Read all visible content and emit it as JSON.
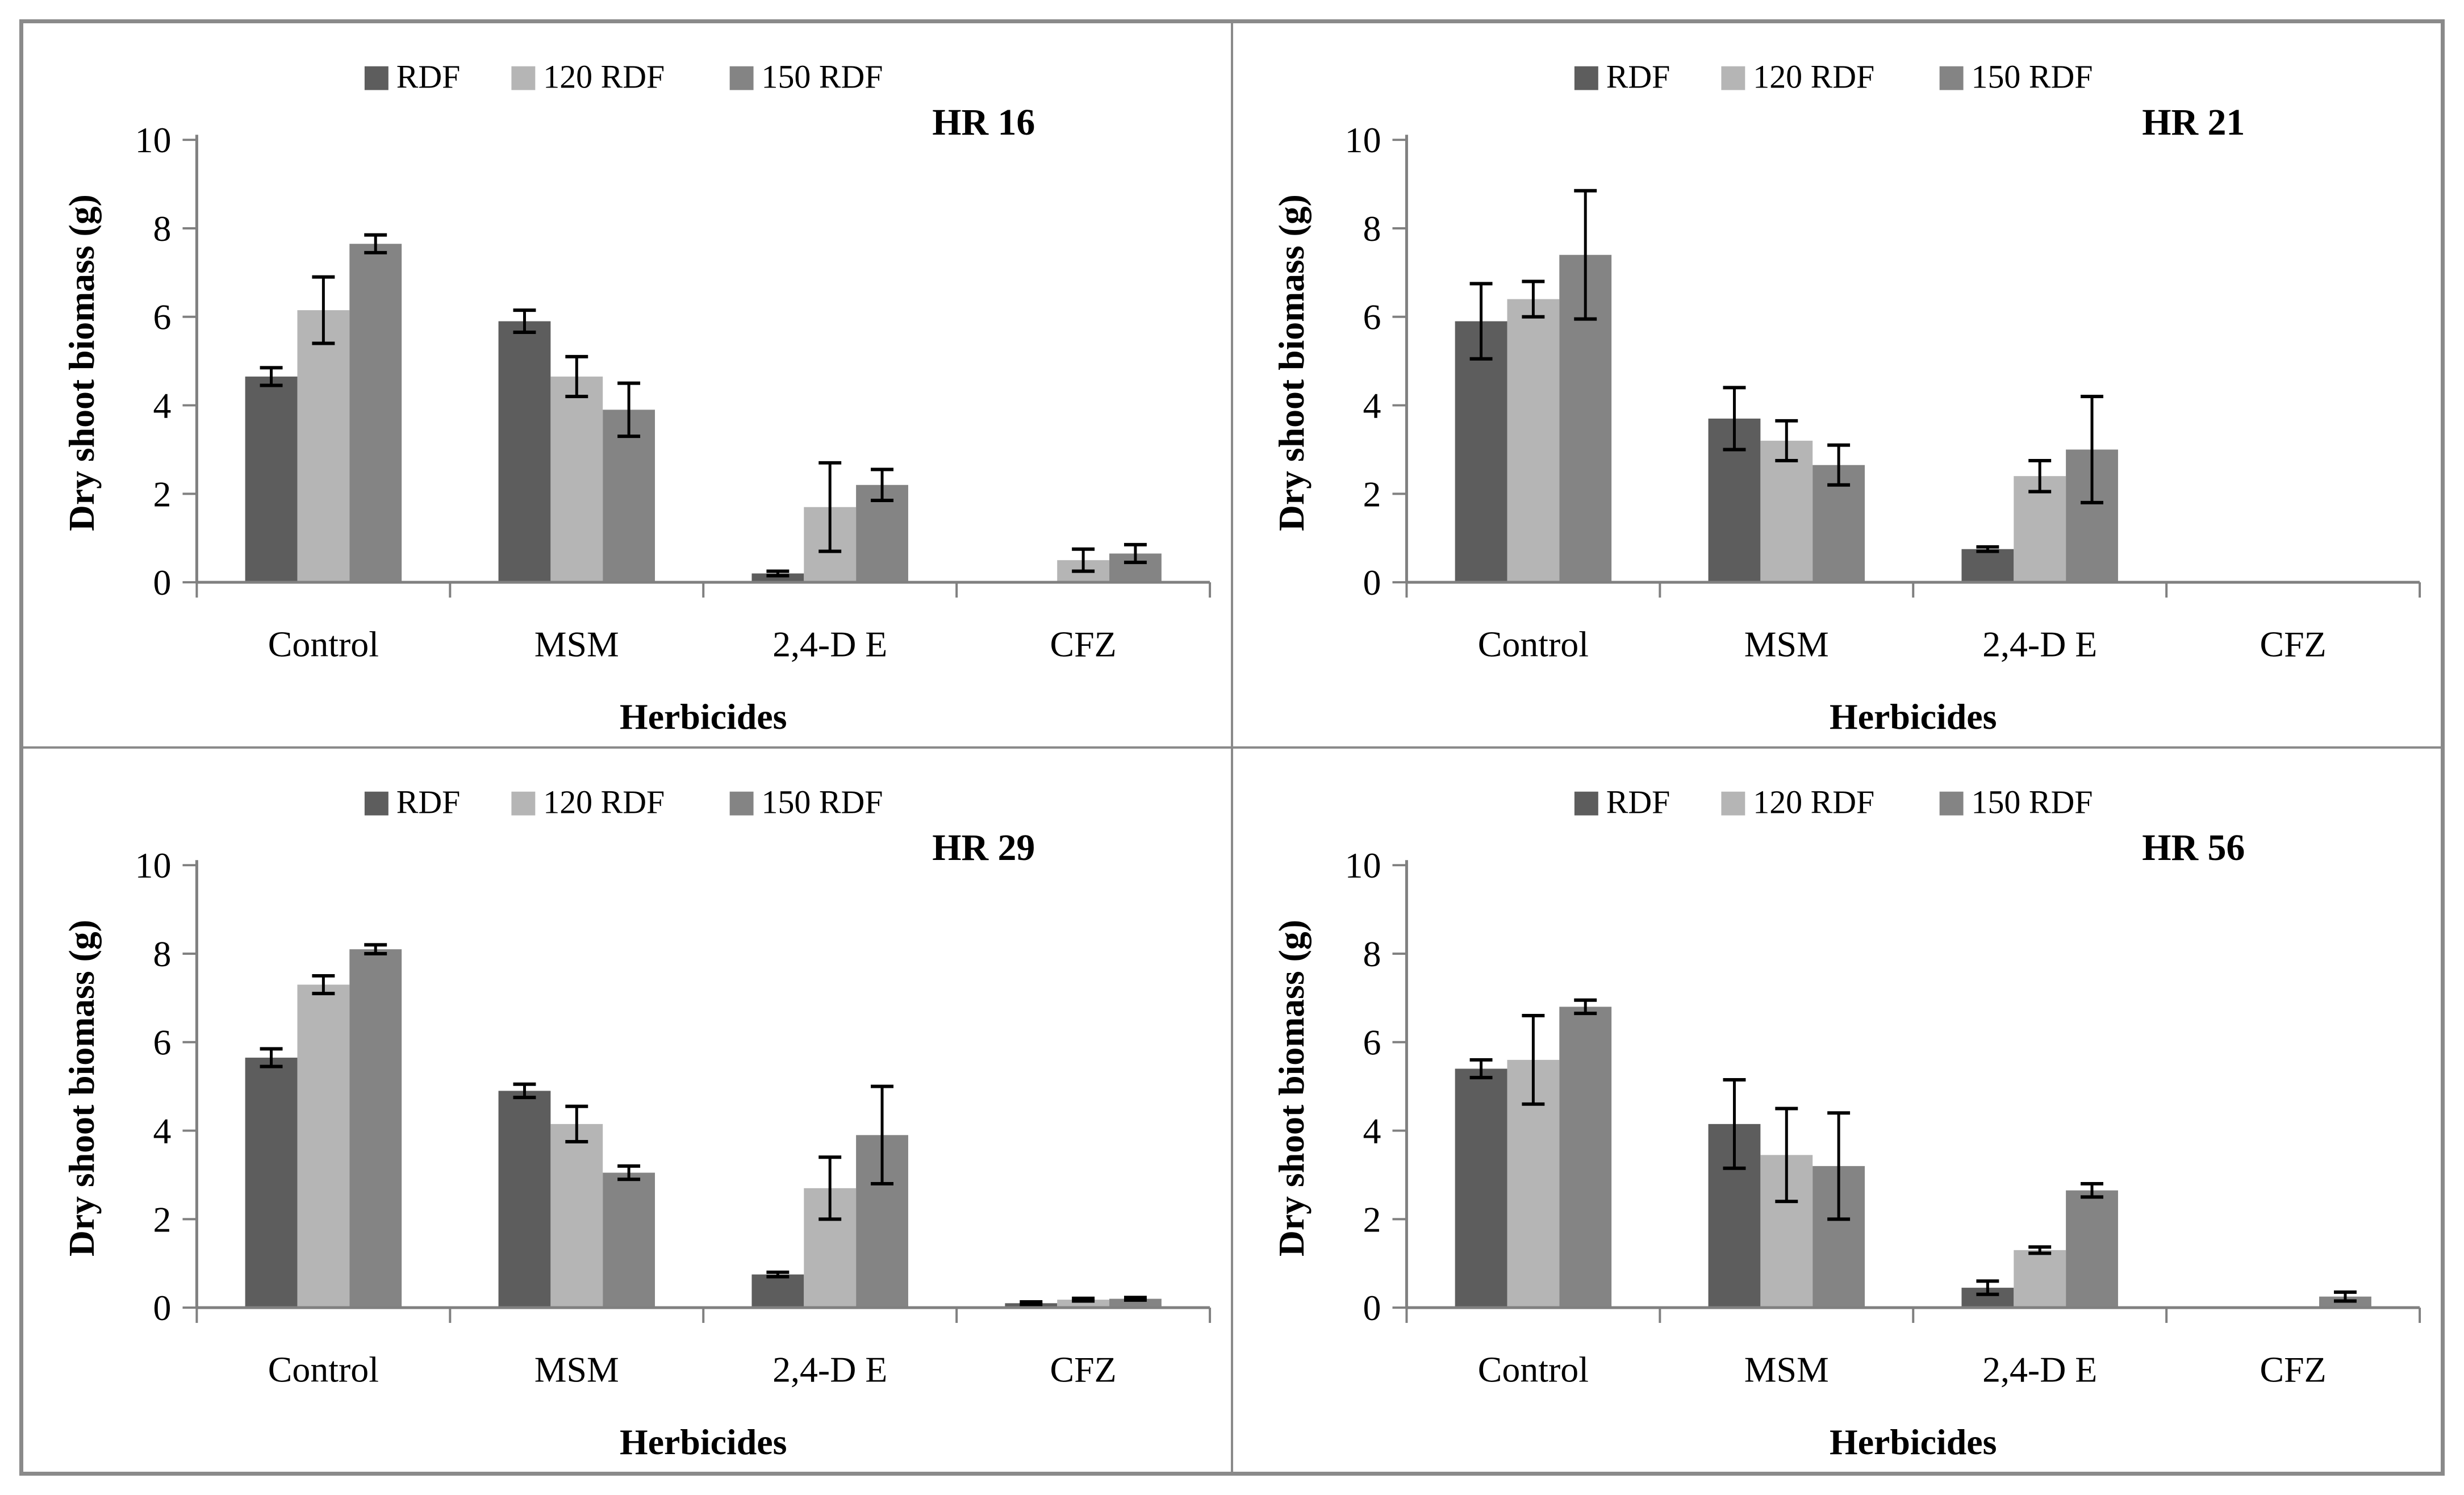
{
  "figure": {
    "panel_titles": [
      "HR 16",
      "HR 21",
      "HR 29",
      "HR 56"
    ]
  },
  "legend": {
    "items": [
      {
        "label": "RDF",
        "color": "#5d5d5d"
      },
      {
        "label": "120 RDF",
        "color": "#b5b5b5"
      },
      {
        "label": "150 RDF",
        "color": "#848484"
      }
    ]
  },
  "axes": {
    "ylabel": "Dry shoot biomass (g)",
    "xlabel": "Herbicides",
    "yticks": [
      0,
      2,
      4,
      6,
      8,
      10
    ],
    "ylim": [
      0,
      10
    ],
    "grid": false,
    "legend_position": "top-center"
  },
  "colors": {
    "axis_line": "#808080",
    "tick_line": "#808080",
    "error_bar": "#000000",
    "text": "#000000",
    "panel_border": "#8a8a8a",
    "background": "#ffffff"
  },
  "chart_data": [
    {
      "type": "bar",
      "title": "HR 16",
      "xlabel": "Herbicides",
      "ylabel": "Dry shoot biomass (g)",
      "ylim": [
        0,
        10
      ],
      "categories": [
        "Control",
        "MSM",
        "2,4-D E",
        "CFZ"
      ],
      "series": [
        {
          "name": "RDF",
          "values": [
            4.65,
            5.9,
            0.2,
            0.0
          ],
          "errors": [
            0.2,
            0.25,
            0.05,
            0.0
          ]
        },
        {
          "name": "120 RDF",
          "values": [
            6.15,
            4.65,
            1.7,
            0.5
          ],
          "errors": [
            0.75,
            0.45,
            1.0,
            0.25
          ]
        },
        {
          "name": "150 RDF",
          "values": [
            7.65,
            3.9,
            2.2,
            0.65
          ],
          "errors": [
            0.2,
            0.6,
            0.35,
            0.2
          ]
        }
      ]
    },
    {
      "type": "bar",
      "title": "HR 21",
      "xlabel": "Herbicides",
      "ylabel": "Dry shoot biomass (g)",
      "ylim": [
        0,
        10
      ],
      "categories": [
        "Control",
        "MSM",
        "2,4-D E",
        "CFZ"
      ],
      "series": [
        {
          "name": "RDF",
          "values": [
            5.9,
            3.7,
            0.75,
            0.0
          ],
          "errors": [
            0.85,
            0.7,
            0.05,
            0.0
          ]
        },
        {
          "name": "120 RDF",
          "values": [
            6.4,
            3.2,
            2.4,
            0.0
          ],
          "errors": [
            0.4,
            0.45,
            0.35,
            0.0
          ]
        },
        {
          "name": "150 RDF",
          "values": [
            7.4,
            2.65,
            3.0,
            0.0
          ],
          "errors": [
            1.45,
            0.45,
            1.2,
            0.0
          ]
        }
      ]
    },
    {
      "type": "bar",
      "title": "HR 29",
      "xlabel": "Herbicides",
      "ylabel": "Dry shoot biomass (g)",
      "ylim": [
        0,
        10
      ],
      "categories": [
        "Control",
        "MSM",
        "2,4-D E",
        "CFZ"
      ],
      "series": [
        {
          "name": "RDF",
          "values": [
            5.65,
            4.9,
            0.75,
            0.1
          ],
          "errors": [
            0.2,
            0.15,
            0.05,
            0.03
          ]
        },
        {
          "name": "120 RDF",
          "values": [
            7.3,
            4.15,
            2.7,
            0.18
          ],
          "errors": [
            0.2,
            0.4,
            0.7,
            0.03
          ]
        },
        {
          "name": "150 RDF",
          "values": [
            8.1,
            3.05,
            3.9,
            0.2
          ],
          "errors": [
            0.1,
            0.15,
            1.1,
            0.03
          ]
        }
      ]
    },
    {
      "type": "bar",
      "title": "HR 56",
      "xlabel": "Herbicides",
      "ylabel": "Dry shoot biomass (g)",
      "ylim": [
        0,
        10
      ],
      "categories": [
        "Control",
        "MSM",
        "2,4-D E",
        "CFZ"
      ],
      "series": [
        {
          "name": "RDF",
          "values": [
            5.4,
            4.15,
            0.45,
            0.0
          ],
          "errors": [
            0.2,
            1.0,
            0.15,
            0.0
          ]
        },
        {
          "name": "120 RDF",
          "values": [
            5.6,
            3.45,
            1.3,
            0.0
          ],
          "errors": [
            1.0,
            1.05,
            0.07,
            0.0
          ]
        },
        {
          "name": "150 RDF",
          "values": [
            6.8,
            3.2,
            2.65,
            0.25
          ],
          "errors": [
            0.15,
            1.2,
            0.15,
            0.1
          ]
        }
      ]
    }
  ]
}
